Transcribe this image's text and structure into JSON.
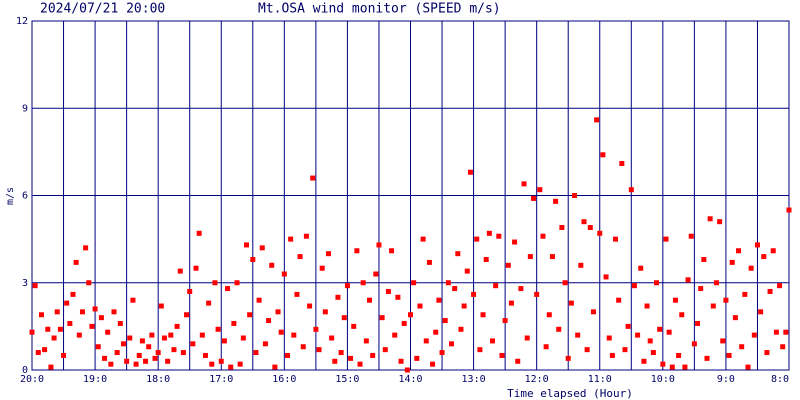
{
  "chart_data": {
    "type": "scatter",
    "timestamp": "2024/07/21 20:00",
    "title": "Mt.OSA wind monitor (SPEED m/s)",
    "y_label": "m/s",
    "x_label": "Time elapsed (Hour)",
    "color": "#ff0000",
    "grid_color": "#000080",
    "xlim": [
      0,
      12
    ],
    "ylim": [
      0,
      12
    ],
    "yticks": [
      0,
      3,
      6,
      9,
      12
    ],
    "xticks": [
      {
        "value": 0,
        "label": "20:0"
      },
      {
        "value": 1,
        "label": "19:0"
      },
      {
        "value": 2,
        "label": "18:0"
      },
      {
        "value": 3,
        "label": "17:0"
      },
      {
        "value": 4,
        "label": "16:0"
      },
      {
        "value": 5,
        "label": "15:0"
      },
      {
        "value": 6,
        "label": "14:0"
      },
      {
        "value": 7,
        "label": "13:0"
      },
      {
        "value": 8,
        "label": "12:0"
      },
      {
        "value": 9,
        "label": "11:0"
      },
      {
        "value": 10,
        "label": "10:0"
      },
      {
        "value": 11,
        "label": "9:0"
      },
      {
        "value": 12,
        "label": "8:0"
      }
    ],
    "xminor": [
      0.5,
      1.5,
      2.5,
      3.5,
      4.5,
      5.5,
      6.5,
      7.5,
      8.5,
      9.5,
      10.5,
      11.5
    ],
    "grid": true,
    "x": [
      0,
      0.05,
      0.1,
      0.15,
      0.2,
      0.25,
      0.3,
      0.35,
      0.4,
      0.45,
      0.5,
      0.55,
      0.6,
      0.65,
      0.7,
      0.75,
      0.8,
      0.85,
      0.9,
      0.95,
      1,
      1.05,
      1.1,
      1.15,
      1.2,
      1.25,
      1.3,
      1.35,
      1.4,
      1.45,
      1.5,
      1.55,
      1.6,
      1.65,
      1.7,
      1.75,
      1.8,
      1.85,
      1.9,
      1.95,
      2,
      2.05,
      2.1,
      2.15,
      2.2,
      2.25,
      2.3,
      2.35,
      2.4,
      2.45,
      2.5,
      2.55,
      2.6,
      2.65,
      2.7,
      2.75,
      2.8,
      2.85,
      2.9,
      2.95,
      3,
      3.05,
      3.1,
      3.15,
      3.2,
      3.25,
      3.3,
      3.35,
      3.4,
      3.45,
      3.5,
      3.55,
      3.6,
      3.65,
      3.7,
      3.75,
      3.8,
      3.85,
      3.9,
      3.95,
      4,
      4.05,
      4.1,
      4.15,
      4.2,
      4.25,
      4.3,
      4.35,
      4.4,
      4.45,
      4.5,
      4.55,
      4.6,
      4.65,
      4.7,
      4.75,
      4.8,
      4.85,
      4.9,
      4.95,
      5,
      5.05,
      5.1,
      5.15,
      5.2,
      5.25,
      5.3,
      5.35,
      5.4,
      5.45,
      5.5,
      5.55,
      5.6,
      5.65,
      5.7,
      5.75,
      5.8,
      5.85,
      5.9,
      5.95,
      6,
      6.05,
      6.1,
      6.15,
      6.2,
      6.25,
      6.3,
      6.35,
      6.4,
      6.45,
      6.5,
      6.55,
      6.6,
      6.65,
      6.7,
      6.75,
      6.8,
      6.85,
      6.9,
      6.95,
      7,
      7.05,
      7.1,
      7.15,
      7.2,
      7.25,
      7.3,
      7.35,
      7.4,
      7.45,
      7.5,
      7.55,
      7.6,
      7.65,
      7.7,
      7.75,
      7.8,
      7.85,
      7.9,
      7.95,
      8,
      8.05,
      8.1,
      8.15,
      8.2,
      8.25,
      8.3,
      8.35,
      8.4,
      8.45,
      8.5,
      8.55,
      8.6,
      8.65,
      8.7,
      8.75,
      8.8,
      8.85,
      8.9,
      8.95,
      9,
      9.05,
      9.1,
      9.15,
      9.2,
      9.25,
      9.3,
      9.35,
      9.4,
      9.45,
      9.5,
      9.55,
      9.6,
      9.65,
      9.7,
      9.75,
      9.8,
      9.85,
      9.9,
      9.95,
      10,
      10.05,
      10.1,
      10.15,
      10.2,
      10.25,
      10.3,
      10.35,
      10.4,
      10.45,
      10.5,
      10.55,
      10.6,
      10.65,
      10.7,
      10.75,
      10.8,
      10.85,
      10.9,
      10.95,
      11,
      11.05,
      11.1,
      11.15,
      11.2,
      11.25,
      11.3,
      11.35,
      11.4,
      11.45,
      11.5,
      11.55,
      11.6,
      11.65,
      11.7,
      11.75,
      11.8,
      11.85,
      11.9,
      11.95,
      12
    ],
    "values": [
      1.3,
      2.9,
      0.6,
      1.9,
      0.7,
      1.4,
      0.1,
      1.1,
      2.0,
      1.4,
      0.5,
      2.3,
      1.6,
      2.6,
      3.7,
      1.2,
      2.0,
      4.2,
      3.0,
      1.5,
      2.1,
      0.8,
      1.8,
      0.4,
      1.3,
      0.2,
      2.0,
      0.6,
      1.6,
      0.9,
      0.3,
      1.1,
      2.4,
      0.2,
      0.5,
      1.0,
      0.3,
      0.8,
      1.2,
      0.4,
      0.6,
      2.2,
      1.1,
      0.3,
      1.2,
      0.7,
      1.5,
      3.4,
      0.6,
      1.9,
      2.7,
      0.9,
      3.5,
      4.7,
      1.2,
      0.5,
      2.3,
      0.2,
      3.0,
      1.4,
      0.3,
      1.0,
      2.8,
      0.1,
      1.6,
      3.0,
      0.2,
      1.1,
      4.3,
      1.9,
      3.8,
      0.6,
      2.4,
      4.2,
      0.9,
      1.7,
      3.6,
      0.1,
      2.0,
      1.3,
      3.3,
      0.5,
      4.5,
      1.2,
      2.6,
      3.9,
      0.8,
      4.6,
      2.2,
      6.6,
      1.4,
      0.7,
      3.5,
      2.0,
      4.0,
      1.1,
      0.3,
      2.5,
      0.6,
      1.8,
      2.9,
      0.4,
      1.5,
      4.1,
      0.2,
      3.0,
      1.0,
      2.4,
      0.5,
      3.3,
      4.3,
      1.8,
      0.7,
      2.7,
      4.1,
      1.2,
      2.5,
      0.3,
      1.6,
      0.0,
      1.9,
      3.0,
      0.4,
      2.2,
      4.5,
      1.0,
      3.7,
      0.2,
      1.3,
      2.4,
      0.6,
      1.7,
      3.0,
      0.9,
      2.8,
      4.0,
      1.4,
      2.2,
      3.4,
      6.8,
      2.6,
      4.5,
      0.7,
      1.9,
      3.8,
      4.7,
      1.0,
      2.9,
      4.6,
      0.5,
      1.7,
      3.6,
      2.3,
      4.4,
      0.3,
      2.8,
      6.4,
      1.1,
      3.9,
      5.9,
      2.6,
      6.2,
      4.6,
      0.8,
      1.9,
      3.9,
      5.8,
      1.4,
      4.9,
      3.0,
      0.4,
      2.3,
      6.0,
      1.2,
      3.6,
      5.1,
      0.7,
      4.9,
      2.0,
      8.6,
      4.7,
      7.4,
      3.2,
      1.1,
      0.5,
      4.5,
      2.4,
      7.1,
      0.7,
      1.5,
      6.2,
      2.9,
      1.2,
      3.5,
      0.3,
      2.2,
      1.0,
      0.6,
      3.0,
      1.4,
      0.2,
      4.5,
      1.3,
      0.1,
      2.4,
      0.5,
      1.9,
      0.1,
      3.1,
      4.6,
      0.9,
      1.6,
      2.8,
      3.8,
      0.4,
      5.2,
      2.2,
      3.0,
      5.1,
      1.0,
      2.4,
      0.5,
      3.7,
      1.8,
      4.1,
      0.8,
      2.6,
      0.1,
      3.5,
      1.2,
      4.3,
      2.0,
      3.9,
      0.6,
      2.7,
      4.1,
      1.3,
      2.9,
      0.8,
      1.3,
      5.5
    ]
  }
}
